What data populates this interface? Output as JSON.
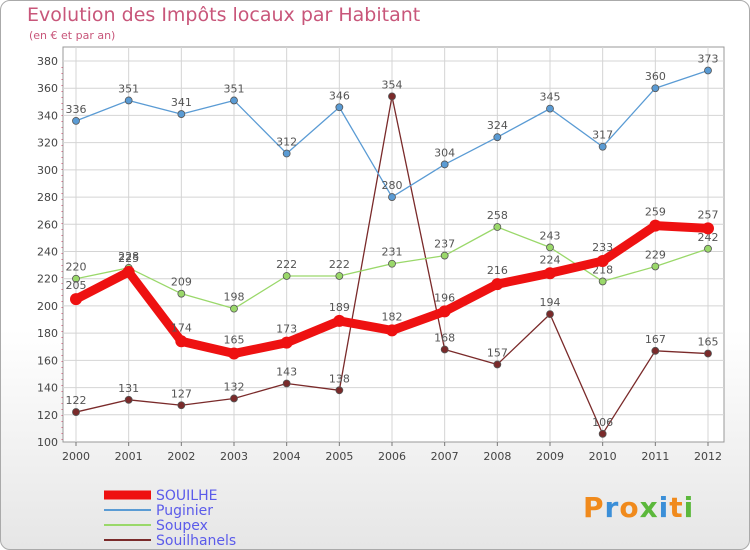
{
  "chart_data": {
    "type": "line",
    "title": "Evolution des Impôts locaux par Habitant",
    "subtitle": "(en € et par an)",
    "categories": [
      "2000",
      "2001",
      "2002",
      "2003",
      "2004",
      "2005",
      "2006",
      "2007",
      "2008",
      "2009",
      "2010",
      "2011",
      "2012"
    ],
    "ylim": [
      100,
      380
    ],
    "yticks": [
      100,
      120,
      140,
      160,
      180,
      200,
      220,
      240,
      260,
      280,
      300,
      320,
      340,
      360,
      380
    ],
    "grid": true,
    "series": [
      {
        "name": "SOUILHE",
        "color": "#ee1111",
        "values": [
          205,
          225,
          174,
          165,
          173,
          189,
          182,
          196,
          216,
          224,
          233,
          259,
          257
        ]
      },
      {
        "name": "Puginier",
        "color": "#5a9bd4",
        "values": [
          336,
          351,
          341,
          351,
          312,
          346,
          280,
          304,
          324,
          345,
          317,
          360,
          373
        ]
      },
      {
        "name": "Soupex",
        "color": "#9ad86a",
        "values": [
          220,
          228,
          209,
          198,
          222,
          222,
          231,
          237,
          258,
          243,
          218,
          229,
          242
        ]
      },
      {
        "name": "Souilhanels",
        "color": "#7a2a2a",
        "values": [
          122,
          131,
          127,
          132,
          143,
          138,
          354,
          168,
          157,
          194,
          106,
          167,
          165
        ]
      }
    ]
  },
  "logo": {
    "text": "Proxiti",
    "letters": [
      "P",
      "r",
      "o",
      "x",
      "i",
      "t",
      "i"
    ],
    "colors": [
      "#f08a1c",
      "#3b8fd8",
      "#f08a1c",
      "#5cb83c",
      "#3b8fd8",
      "#f08a1c",
      "#5cb83c"
    ]
  }
}
